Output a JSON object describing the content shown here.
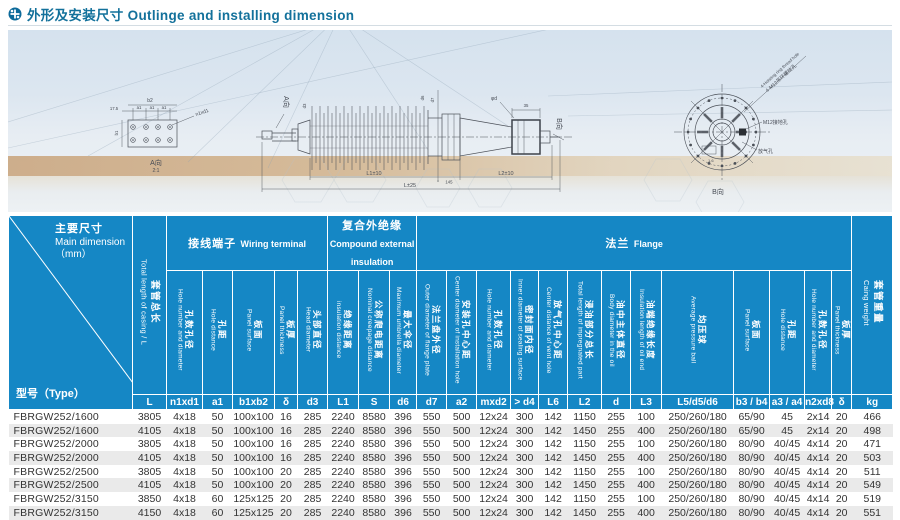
{
  "header": {
    "title_cn": "外形及安装尺寸",
    "title_en": "Outlinge and installing dimension"
  },
  "colors": {
    "header_blue": "#1587c5",
    "title_blue": "#13719b",
    "row_alt": "#eaeaea"
  },
  "drawing": {
    "view_a": "A向",
    "view_a_scale": "2:1",
    "view_a_arrow": "A向",
    "view_b_small": "B向",
    "view_b": "B向",
    "plate": {
      "dim_b2": "b2",
      "dim_175": "17.5",
      "dim_a1_1": "a1",
      "dim_a1_2": "a1",
      "dim_a1_3": "a1",
      "dim_b1": "b1",
      "leader": "n1xd1"
    },
    "bushing": {
      "dim_d3": "d3",
      "dim_d6": "d6",
      "dim_d7": "d7",
      "dim_35": "35",
      "dim_phid": "φd",
      "dim_l1": "L1±10",
      "dim_145": "145",
      "dim_l2": "L2±10",
      "dim_total": "L±25"
    },
    "flange_view": {
      "hoist_en": "4-Hoisting ring thread hole",
      "hoist_cn": "4-M12吊环螺纹孔",
      "ground_hole": "M12接地孔",
      "vent_hole": "放气孔",
      "dim_16": "1.6"
    }
  },
  "table": {
    "corner": {
      "cn": "主要尺寸",
      "en": "Main dimension",
      "unit": "（mm）",
      "type_label": "型号（Type）"
    },
    "groups": [
      {
        "cn": "接线端子",
        "en": "Wiring terminal"
      },
      {
        "cn": "复合外绝缘",
        "en": "Compound external insulation"
      },
      {
        "cn": "法兰",
        "en": "Flange"
      }
    ],
    "full_columns": [
      {
        "cn": "套管总长",
        "en": "Total length of casing / L",
        "code": "L"
      },
      {
        "cn": "套管重量",
        "en": "Caing weight",
        "code": "kg"
      }
    ],
    "columns": [
      {
        "cn": "孔数孔径",
        "en": "Hole number and diameter",
        "code": "n1xd1"
      },
      {
        "cn": "孔距",
        "en": "Hole distance",
        "code": "a1"
      },
      {
        "cn": "板面",
        "en": "Panel surface",
        "code": "b1xb2"
      },
      {
        "cn": "板厚",
        "en": "Panel thickness",
        "code": "δ"
      },
      {
        "cn": "头部直径",
        "en": "Head diameter",
        "code": "d3"
      },
      {
        "cn": "绝缘距离",
        "en": "insulation distance",
        "code": "L1"
      },
      {
        "cn": "公称爬电距离",
        "en": "Nominal creepage distance",
        "code": "S"
      },
      {
        "cn": "最大伞径",
        "en": "Maximum umbrella diameter",
        "code": "d6"
      },
      {
        "cn": "法兰盘外径",
        "en": "Outer diameter of flange plate",
        "code": "d7"
      },
      {
        "cn": "安装孔中心距",
        "en": "Center diameter of installation hole",
        "code": "a2"
      },
      {
        "cn": "孔数孔径",
        "en": "Hole number and diameter",
        "code": "mxd2"
      },
      {
        "cn": "密封面内径",
        "en": "Inner diameter of sealing surface",
        "code": "d4"
      },
      {
        "cn": "放气孔中心距",
        "en": "Center distance of vent hole",
        "code": "L6"
      },
      {
        "cn": "浸油部分总长",
        "en": "Total length of impregnated part",
        "code": "L2"
      },
      {
        "cn": "油中主体直径",
        "en": "Body diameter in the oil",
        "code": "d"
      },
      {
        "cn": "油端绝缘长度",
        "en": "Insulation length of oil end",
        "code": "L3"
      },
      {
        "cn": "均压球",
        "en": "Average pressure ball",
        "code": "L5d5d6"
      },
      {
        "cn": "板面",
        "en": "Panel surface",
        "code": "b3b4"
      },
      {
        "cn": "孔距",
        "en": "Hole distance",
        "code": "a3a4"
      },
      {
        "cn": "孔数孔径",
        "en": "Hole number and diameter",
        "code": "n2xd8"
      },
      {
        "cn": "板厚",
        "en": "Panel thickness",
        "code": "δ2"
      }
    ],
    "code_row": [
      "L",
      "n1xd1",
      "a1",
      "b1xb2",
      "δ",
      "d3",
      "L1",
      "S",
      "d6",
      "d7",
      "a2",
      "mxd2",
      "> d4",
      "L6",
      "L2",
      "d",
      "L3",
      "L5/d5/d6",
      "b3 / b4",
      "a3 / a4",
      "n2xd8",
      "δ",
      "kg"
    ],
    "rows": [
      {
        "type": "FBRGW252/1600",
        "values": [
          "3805",
          "4x18",
          "50",
          "100x100",
          "16",
          "285",
          "2240",
          "8580",
          "396",
          "550",
          "500",
          "12x24",
          "300",
          "142",
          "1150",
          "255",
          "100",
          "250/260/180",
          "65/90",
          "45",
          "2x14",
          "20",
          "466"
        ]
      },
      {
        "type": "FBRGW252/1600",
        "values": [
          "4105",
          "4x18",
          "50",
          "100x100",
          "16",
          "285",
          "2240",
          "8580",
          "396",
          "550",
          "500",
          "12x24",
          "300",
          "142",
          "1450",
          "255",
          "400",
          "250/260/180",
          "65/90",
          "45",
          "2x14",
          "20",
          "498"
        ]
      },
      {
        "type": "FBRGW252/2000",
        "values": [
          "3805",
          "4x18",
          "50",
          "100x100",
          "16",
          "285",
          "2240",
          "8580",
          "396",
          "550",
          "500",
          "12x24",
          "300",
          "142",
          "1150",
          "255",
          "100",
          "250/260/180",
          "80/90",
          "40/45",
          "4x14",
          "20",
          "471"
        ]
      },
      {
        "type": "FBRGW252/2000",
        "values": [
          "4105",
          "4x18",
          "50",
          "100x100",
          "16",
          "285",
          "2240",
          "8580",
          "396",
          "550",
          "500",
          "12x24",
          "300",
          "142",
          "1450",
          "255",
          "400",
          "250/260/180",
          "80/90",
          "40/45",
          "4x14",
          "20",
          "503"
        ]
      },
      {
        "type": "FBRGW252/2500",
        "values": [
          "3805",
          "4x18",
          "50",
          "100x100",
          "20",
          "285",
          "2240",
          "8580",
          "396",
          "550",
          "500",
          "12x24",
          "300",
          "142",
          "1150",
          "255",
          "100",
          "250/260/180",
          "80/90",
          "40/45",
          "4x14",
          "20",
          "511"
        ]
      },
      {
        "type": "FBRGW252/2500",
        "values": [
          "4105",
          "4x18",
          "50",
          "100x100",
          "20",
          "285",
          "2240",
          "8580",
          "396",
          "550",
          "500",
          "12x24",
          "300",
          "142",
          "1450",
          "255",
          "400",
          "250/260/180",
          "80/90",
          "40/45",
          "4x14",
          "20",
          "549"
        ]
      },
      {
        "type": "FBRGW252/3150",
        "values": [
          "3850",
          "4x18",
          "60",
          "125x125",
          "20",
          "285",
          "2240",
          "8580",
          "396",
          "550",
          "500",
          "12x24",
          "300",
          "142",
          "1150",
          "255",
          "100",
          "250/260/180",
          "80/90",
          "40/45",
          "4x14",
          "20",
          "519"
        ]
      },
      {
        "type": "FBRGW252/3150",
        "values": [
          "4150",
          "4x18",
          "60",
          "125x125",
          "20",
          "285",
          "2240",
          "8580",
          "396",
          "550",
          "500",
          "12x24",
          "300",
          "142",
          "1450",
          "255",
          "400",
          "250/260/180",
          "80/90",
          "40/45",
          "4x14",
          "20",
          "551"
        ]
      }
    ]
  }
}
